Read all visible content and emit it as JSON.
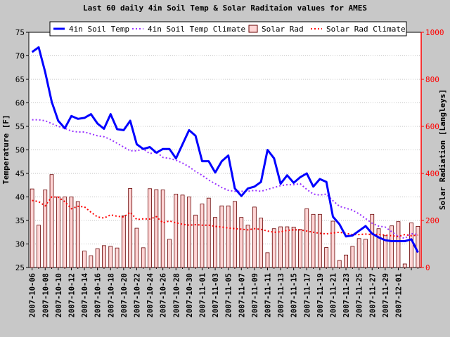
{
  "chart_data": {
    "type": "bar+line",
    "title": "Last 60 daily 4in Soil Temp & Solar Raditaion values for  AMES",
    "ylabel_left": "Temperature [F]",
    "ylabel_right": "Solar Radiation [Langleys]",
    "ylim_left": [
      25,
      75
    ],
    "ylim_right": [
      0,
      1000
    ],
    "yticks_left": [
      "25",
      "30",
      "35",
      "40",
      "45",
      "50",
      "55",
      "60",
      "65",
      "70",
      "75"
    ],
    "yticks_right": [
      "0",
      "200",
      "400",
      "600",
      "800",
      "1000"
    ],
    "start_date": "2007-10-06",
    "xtick_labels": [
      "2007-10-06",
      "2007-10-08",
      "2007-10-10",
      "2007-10-12",
      "2007-10-14",
      "2007-10-16",
      "2007-10-18",
      "2007-10-20",
      "2007-10-22",
      "2007-10-24",
      "2007-10-26",
      "2007-10-28",
      "2007-10-30",
      "2007-11-01",
      "2007-11-03",
      "2007-11-05",
      "2007-11-07",
      "2007-11-09",
      "2007-11-11",
      "2007-11-13",
      "2007-11-15",
      "2007-11-17",
      "2007-11-19",
      "2007-11-21",
      "2007-11-23",
      "2007-11-25",
      "2007-11-27",
      "2007-11-29",
      "2007-12-01"
    ],
    "grid": true,
    "legend_position": "top",
    "series": [
      {
        "name": "4in Soil Temp",
        "axis": "left",
        "style": "line",
        "color": "#0000ff",
        "values": [
          70.8,
          71.8,
          66.5,
          60.2,
          56.2,
          54.6,
          57.2,
          56.6,
          56.8,
          57.6,
          55.6,
          54.5,
          57.6,
          54.4,
          54.2,
          56.2,
          51.2,
          50.2,
          50.6,
          49.4,
          50.2,
          50.2,
          48.2,
          51.2,
          54.2,
          53.0,
          47.6,
          47.6,
          45.2,
          47.6,
          48.8,
          41.8,
          40.2,
          41.8,
          42.2,
          43.2,
          50.0,
          48.2,
          42.8,
          44.6,
          43.0,
          44.2,
          45.0,
          42.2,
          43.8,
          43.2,
          35.8,
          34.2,
          31.6,
          31.8,
          32.8,
          33.8,
          32.2,
          31.4,
          30.8,
          30.6,
          30.6,
          30.6,
          31.0,
          28.2
        ]
      },
      {
        "name": "4in Soil Temp Climate",
        "axis": "left",
        "style": "dotted",
        "color": "#9933ff",
        "values": [
          56.4,
          56.4,
          56.2,
          55.6,
          55.0,
          54.6,
          54.0,
          53.8,
          53.8,
          53.4,
          53.0,
          52.8,
          52.2,
          51.4,
          50.6,
          49.8,
          49.8,
          50.2,
          49.2,
          49.6,
          48.4,
          48.2,
          47.8,
          47.2,
          46.4,
          45.4,
          44.6,
          43.6,
          42.8,
          42.0,
          41.4,
          41.2,
          41.2,
          41.2,
          41.4,
          41.2,
          41.6,
          42.0,
          42.4,
          42.6,
          42.6,
          42.8,
          41.6,
          40.6,
          40.4,
          40.6,
          39.2,
          38.0,
          37.6,
          37.2,
          36.4,
          35.4,
          34.4,
          33.8,
          33.6,
          32.6,
          31.6,
          31.2,
          32.2,
          32.0
        ]
      },
      {
        "name": "Solar Rad",
        "axis": "right",
        "style": "bar",
        "fill": "#ffd5d5",
        "stroke": "#660000",
        "values": [
          334,
          180,
          330,
          395,
          300,
          300,
          300,
          280,
          70,
          50,
          80,
          93,
          90,
          83,
          220,
          336,
          167,
          84,
          335,
          331,
          330,
          120,
          312,
          308,
          300,
          223,
          270,
          295,
          213,
          262,
          262,
          281,
          213,
          180,
          257,
          210,
          63,
          165,
          173,
          173,
          172,
          162,
          250,
          226,
          226,
          85,
          197,
          30,
          53,
          90,
          123,
          120,
          226,
          165,
          135,
          177,
          195,
          15,
          190,
          175
        ]
      },
      {
        "name": "Solar Rad Climate",
        "axis": "right",
        "style": "dotted",
        "color": "#ff0000",
        "values": [
          285,
          280,
          262,
          300,
          299,
          280,
          250,
          260,
          258,
          235,
          215,
          210,
          224,
          218,
          215,
          235,
          204,
          207,
          206,
          216,
          190,
          198,
          190,
          184,
          180,
          182,
          180,
          180,
          175,
          172,
          168,
          165,
          163,
          160,
          165,
          162,
          155,
          150,
          152,
          158,
          160,
          160,
          155,
          150,
          145,
          143,
          147,
          150,
          145,
          140,
          140,
          142,
          140,
          141,
          138,
          135,
          132,
          140,
          135,
          138
        ]
      }
    ]
  }
}
